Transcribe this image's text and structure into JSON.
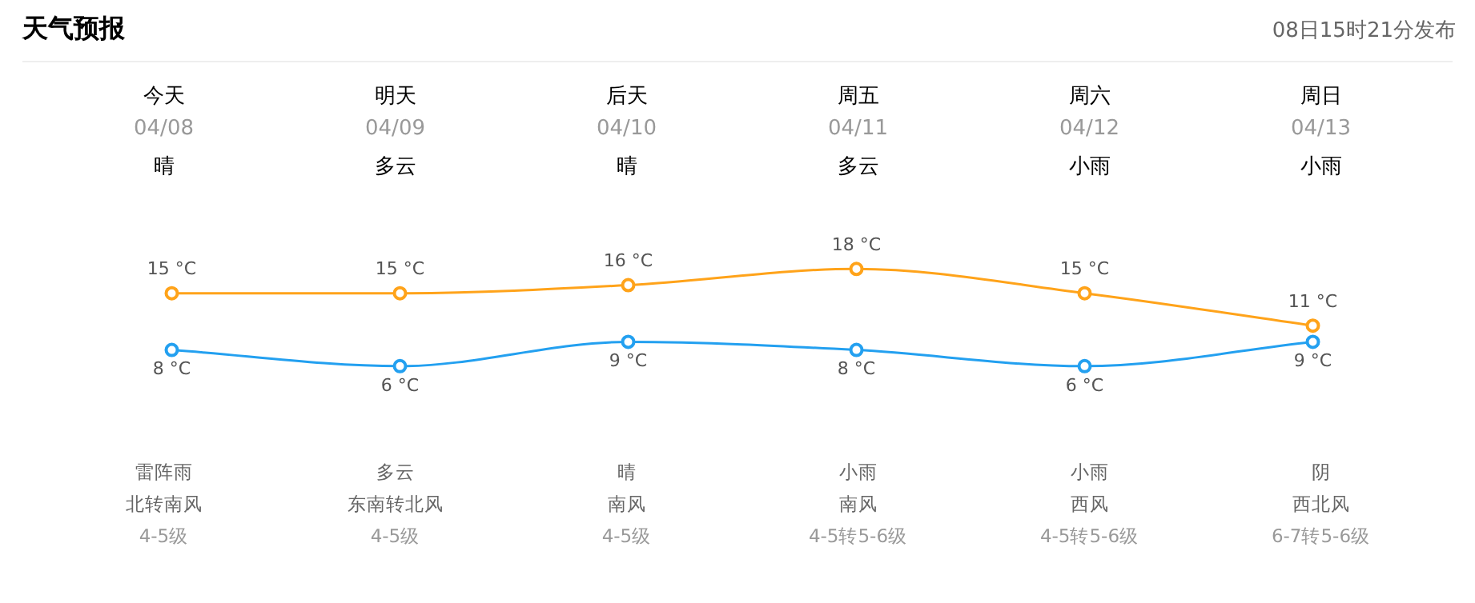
{
  "chart_data": {
    "type": "line",
    "title": "天气预报",
    "subtitle": "08日15时21分发布",
    "categories": [
      "今天",
      "明天",
      "后天",
      "周五",
      "周六",
      "周日"
    ],
    "series": [
      {
        "name": null,
        "color": "#ffa31a",
        "values": [
          15,
          15,
          16,
          18,
          15,
          11
        ],
        "value_labels": [
          "15 °C",
          "15 °C",
          "16 °C",
          "18 °C",
          "15 °C",
          "11 °C"
        ]
      },
      {
        "name": null,
        "color": "#23a0f0",
        "values": [
          8,
          6,
          9,
          8,
          6,
          9
        ],
        "value_labels": [
          "8 °C",
          "6 °C",
          "9 °C",
          "8 °C",
          "6 °C",
          "9 °C"
        ]
      }
    ],
    "tick_labels": false,
    "legend": false,
    "marker": "circle",
    "line_style": "solid",
    "annotations": [
      "04/08",
      "晴",
      "雷阵雨",
      "北转南风",
      "4-5级",
      "04/09",
      "多云",
      "多云",
      "东南转北风",
      "4-5级",
      "04/10",
      "晴",
      "晴",
      "南风",
      "4-5级",
      "04/11",
      "多云",
      "小雨",
      "南风",
      "4-5转5-6级",
      "04/12",
      "小雨",
      "小雨",
      "西风",
      "4-5转5-6级",
      "04/13",
      "小雨",
      "阴",
      "西北风",
      "6-7转5-6级"
    ]
  }
}
